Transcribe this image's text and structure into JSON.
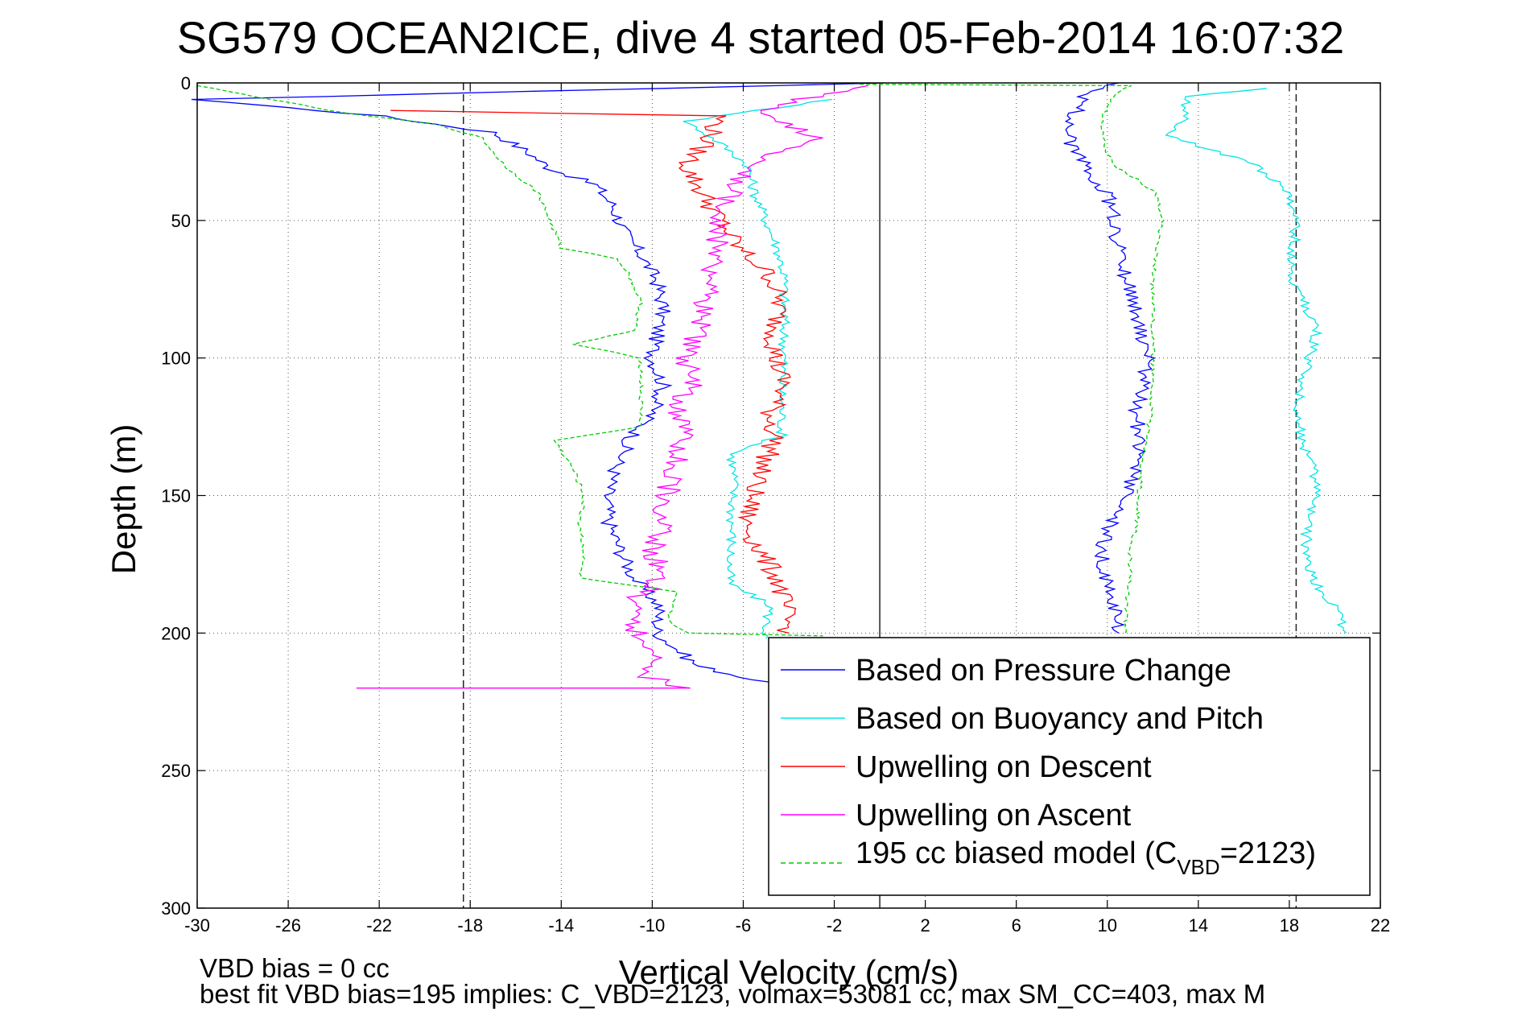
{
  "chart_data": {
    "type": "line",
    "title": "SG579 OCEAN2ICE, dive 4 started 05-Feb-2014 16:07:32",
    "xlabel": "Vertical Velocity (cm/s)",
    "ylabel": "Depth (m)",
    "xlim": [
      -30,
      22
    ],
    "ylim": [
      0,
      300
    ],
    "y_reversed": true,
    "grid": true,
    "xticks": [
      "-30",
      "-26",
      "-22",
      "-18",
      "-14",
      "-10",
      "-6",
      "-2",
      "2",
      "6",
      "10",
      "14",
      "18",
      "22"
    ],
    "yticks": [
      "0",
      "50",
      "100",
      "150",
      "200",
      "250",
      "300"
    ],
    "vertical_lines": [
      {
        "x": -18.3,
        "style": "dashed"
      },
      {
        "x": 0,
        "style": "solid"
      },
      {
        "x": 18.3,
        "style": "dashed"
      }
    ],
    "legend_position": "lower-right",
    "series": [
      {
        "name": "Based on Pressure Change",
        "color": "#0000ff",
        "style": "solid",
        "points": [
          [
            0.2,
            0
          ],
          [
            -30,
            6
          ],
          [
            -22,
            12
          ],
          [
            -17,
            18
          ],
          [
            -15.5,
            25
          ],
          [
            -14.5,
            31
          ],
          [
            -12.5,
            37
          ],
          [
            -11.7,
            45
          ],
          [
            -11.2,
            55
          ],
          [
            -10.5,
            62
          ],
          [
            -9.8,
            72
          ],
          [
            -9.5,
            82
          ],
          [
            -9.8,
            92
          ],
          [
            -10.0,
            100
          ],
          [
            -9.5,
            110
          ],
          [
            -10.0,
            120
          ],
          [
            -11.0,
            130
          ],
          [
            -11.6,
            140
          ],
          [
            -12.0,
            150
          ],
          [
            -11.9,
            160
          ],
          [
            -11.4,
            170
          ],
          [
            -10.8,
            180
          ],
          [
            -9.7,
            190
          ],
          [
            -9.8,
            200
          ],
          [
            -8.0,
            212
          ],
          [
            -5.0,
            218
          ],
          [
            -4.0,
            220
          ]
        ],
        "points_ascent": [
          [
            10.5,
            200
          ],
          [
            10.3,
            190
          ],
          [
            9.9,
            180
          ],
          [
            9.7,
            170
          ],
          [
            10.2,
            160
          ],
          [
            10.8,
            150
          ],
          [
            11.3,
            140
          ],
          [
            11.5,
            130
          ],
          [
            11.2,
            120
          ],
          [
            11.6,
            110
          ],
          [
            11.8,
            100
          ],
          [
            11.5,
            90
          ],
          [
            11.2,
            80
          ],
          [
            10.8,
            70
          ],
          [
            10.5,
            60
          ],
          [
            10.3,
            50
          ],
          [
            10.0,
            40
          ],
          [
            9.0,
            30
          ],
          [
            8.3,
            22
          ],
          [
            8.5,
            12
          ],
          [
            9.2,
            3
          ],
          [
            10.5,
            0
          ]
        ]
      },
      {
        "name": "Based on Buoyancy and Pitch",
        "color": "#00e5e5",
        "style": "solid",
        "points": [
          [
            -2.1,
            6
          ],
          [
            -8.5,
            14
          ],
          [
            -7.0,
            22
          ],
          [
            -5.8,
            30
          ],
          [
            -5.5,
            40
          ],
          [
            -5.0,
            50
          ],
          [
            -4.5,
            60
          ],
          [
            -4.2,
            70
          ],
          [
            -4.2,
            80
          ],
          [
            -4.2,
            90
          ],
          [
            -4.2,
            100
          ],
          [
            -4.3,
            110
          ],
          [
            -4.3,
            120
          ],
          [
            -4.3,
            128
          ],
          [
            -6.5,
            135
          ],
          [
            -6.4,
            145
          ],
          [
            -6.5,
            155
          ],
          [
            -6.5,
            165
          ],
          [
            -6.6,
            175
          ],
          [
            -6.6,
            182
          ],
          [
            -4.8,
            190
          ],
          [
            -5.0,
            198
          ],
          [
            -5.0,
            202
          ]
        ],
        "points_ascent": [
          [
            20.5,
            200
          ],
          [
            20.0,
            190
          ],
          [
            19.0,
            180
          ],
          [
            18.7,
            170
          ],
          [
            18.8,
            160
          ],
          [
            19.2,
            150
          ],
          [
            19.0,
            140
          ],
          [
            18.6,
            130
          ],
          [
            18.3,
            120
          ],
          [
            18.5,
            110
          ],
          [
            18.9,
            100
          ],
          [
            19.2,
            90
          ],
          [
            18.7,
            80
          ],
          [
            18.0,
            70
          ],
          [
            18.2,
            60
          ],
          [
            18.3,
            50
          ],
          [
            18.0,
            40
          ],
          [
            16.5,
            30
          ],
          [
            14.5,
            24
          ],
          [
            12.5,
            19
          ],
          [
            13.5,
            12
          ],
          [
            13.5,
            5
          ],
          [
            17.0,
            2
          ]
        ]
      },
      {
        "name": "Upwelling on Descent",
        "color": "#ff0000",
        "style": "solid",
        "points": [
          [
            -21.5,
            10
          ],
          [
            -7.0,
            12
          ],
          [
            -7.5,
            20
          ],
          [
            -8.5,
            30
          ],
          [
            -7.8,
            40
          ],
          [
            -7.0,
            50
          ],
          [
            -6.2,
            60
          ],
          [
            -4.8,
            70
          ],
          [
            -4.4,
            80
          ],
          [
            -4.6,
            90
          ],
          [
            -4.6,
            100
          ],
          [
            -4.2,
            110
          ],
          [
            -4.8,
            120
          ],
          [
            -4.6,
            130
          ],
          [
            -5.2,
            140
          ],
          [
            -5.6,
            150
          ],
          [
            -5.9,
            160
          ],
          [
            -5.3,
            170
          ],
          [
            -4.5,
            180
          ],
          [
            -4.2,
            190
          ],
          [
            -4.0,
            200
          ]
        ]
      },
      {
        "name": "Upwelling on Ascent",
        "color": "#ff00ff",
        "style": "solid",
        "points": [
          [
            -23.0,
            220
          ],
          [
            -13.0,
            220
          ],
          [
            -8.5,
            220
          ],
          [
            -10.5,
            215
          ],
          [
            -9.8,
            210
          ],
          [
            -10.6,
            200
          ],
          [
            -11.0,
            190
          ],
          [
            -9.6,
            180
          ],
          [
            -9.9,
            170
          ],
          [
            -9.6,
            160
          ],
          [
            -9.3,
            150
          ],
          [
            -9.1,
            140
          ],
          [
            -8.6,
            130
          ],
          [
            -8.9,
            120
          ],
          [
            -8.3,
            110
          ],
          [
            -8.5,
            100
          ],
          [
            -8.0,
            90
          ],
          [
            -7.7,
            80
          ],
          [
            -7.4,
            70
          ],
          [
            -7.2,
            60
          ],
          [
            -7.0,
            50
          ],
          [
            -6.5,
            40
          ],
          [
            -6.0,
            30
          ],
          [
            -3.0,
            20
          ],
          [
            -5.0,
            10
          ],
          [
            -2.5,
            4
          ],
          [
            -0.5,
            1
          ]
        ]
      },
      {
        "name": "195 cc biased model",
        "color": "#00cc00",
        "style": "dashed",
        "points": [
          [
            -30,
            1
          ],
          [
            -23.5,
            11
          ],
          [
            -19.5,
            15
          ],
          [
            -17.5,
            20
          ],
          [
            -16.5,
            30
          ],
          [
            -15.0,
            40
          ],
          [
            -14.5,
            50
          ],
          [
            -14.0,
            60
          ],
          [
            -11.5,
            64
          ],
          [
            -11.0,
            70
          ],
          [
            -10.5,
            80
          ],
          [
            -10.8,
            90
          ],
          [
            -13.5,
            95
          ],
          [
            -10.5,
            100
          ],
          [
            -10.5,
            110
          ],
          [
            -10.5,
            125
          ],
          [
            -14.3,
            130
          ],
          [
            -13.5,
            140
          ],
          [
            -13.0,
            150
          ],
          [
            -13.2,
            160
          ],
          [
            -13.0,
            170
          ],
          [
            -13.2,
            180
          ],
          [
            -9.0,
            185
          ],
          [
            -9.3,
            195
          ],
          [
            -8.5,
            200
          ],
          [
            -2.5,
            201
          ]
        ],
        "points_ascent": [
          [
            10.8,
            200
          ],
          [
            10.8,
            190
          ],
          [
            11.0,
            180
          ],
          [
            11.0,
            170
          ],
          [
            11.3,
            160
          ],
          [
            11.4,
            150
          ],
          [
            11.5,
            140
          ],
          [
            11.7,
            130
          ],
          [
            11.9,
            120
          ],
          [
            12.0,
            110
          ],
          [
            12.0,
            100
          ],
          [
            12.0,
            90
          ],
          [
            12.0,
            80
          ],
          [
            12.0,
            70
          ],
          [
            12.2,
            60
          ],
          [
            12.4,
            50
          ],
          [
            12.1,
            40
          ],
          [
            11.3,
            35
          ],
          [
            10.3,
            30
          ],
          [
            9.8,
            22
          ],
          [
            9.8,
            12
          ],
          [
            10.3,
            5
          ],
          [
            11.0,
            1
          ],
          [
            -1.0,
            0.5
          ]
        ]
      }
    ],
    "legend": [
      {
        "label": "Based on Pressure Change"
      },
      {
        "label": "Based on Buoyancy and Pitch"
      },
      {
        "label": "Upwelling on Descent"
      },
      {
        "label": "Upwelling on Ascent"
      },
      {
        "label": "195 cc biased model (C",
        "subscript": "VBD",
        "suffix": "=2123)"
      }
    ],
    "annotations": [
      "VBD bias = 0 cc",
      "best fit VBD bias=195 implies: C_VBD=2123, volmax=53081 cc, max SM_CC=403, max M"
    ]
  }
}
